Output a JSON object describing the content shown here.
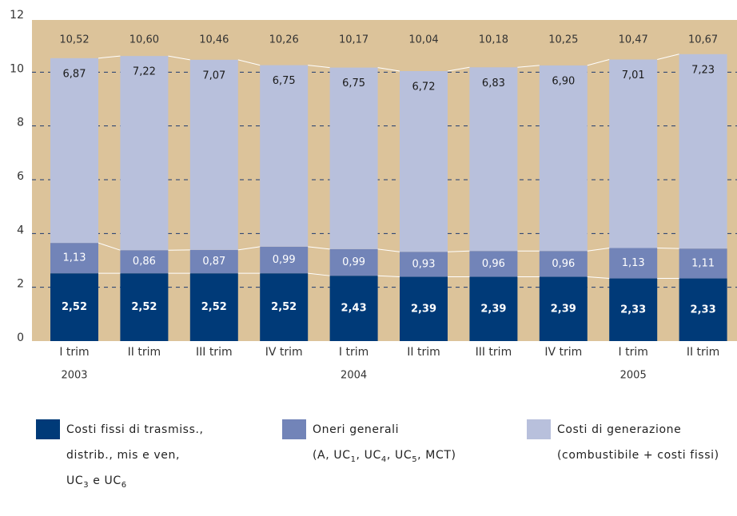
{
  "chart_data": {
    "type": "stacked_bar",
    "categories": [
      "I trim",
      "II trim",
      "III trim",
      "IV trim",
      "I trim",
      "II trim",
      "III trim",
      "IV trim",
      "I trim",
      "II trim"
    ],
    "year_labels": [
      "2003",
      null,
      null,
      null,
      "2004",
      null,
      null,
      null,
      "2005",
      null
    ],
    "ylim": [
      0,
      12
    ],
    "yticks": [
      0,
      2,
      4,
      6,
      8,
      10,
      12
    ],
    "grid": true,
    "series": [
      {
        "name": "Costi fissi di trasmiss.,\ndistrib., mis e ven,\nUC3 e UC6",
        "color": "#003a78",
        "label_color": "#ffffff",
        "values": [
          2.52,
          2.52,
          2.52,
          2.52,
          2.43,
          2.39,
          2.39,
          2.39,
          2.33,
          2.33
        ],
        "value_labels": [
          "2,52",
          "2,52",
          "2,52",
          "2,52",
          "2,43",
          "2,39",
          "2,39",
          "2,39",
          "2,33",
          "2,33"
        ]
      },
      {
        "name": "Oneri generali\n(A, UC1, UC4, UC5, MCT)",
        "color": "#7284b8",
        "label_color": "#ffffff",
        "values": [
          1.13,
          0.86,
          0.87,
          0.99,
          0.99,
          0.93,
          0.96,
          0.96,
          1.13,
          1.11
        ],
        "value_labels": [
          "1,13",
          "0,86",
          "0,87",
          "0,99",
          "0,99",
          "0,93",
          "0,96",
          "0,96",
          "1,13",
          "1,11"
        ]
      },
      {
        "name": "Costi di generazione\n(combustibile + costi fissi)",
        "color": "#b8c0dc",
        "label_color": "#1a1a1a",
        "values": [
          6.87,
          7.22,
          7.07,
          6.75,
          6.75,
          6.72,
          6.83,
          6.9,
          7.01,
          7.23
        ],
        "value_labels": [
          "6,87",
          "7,22",
          "7,07",
          "6,75",
          "6,75",
          "6,72",
          "6,83",
          "6,90",
          "7,01",
          "7,23"
        ]
      }
    ],
    "totals": {
      "values": [
        10.52,
        10.6,
        10.46,
        10.26,
        10.17,
        10.04,
        10.18,
        10.25,
        10.47,
        10.67
      ],
      "value_labels": [
        "10,52",
        "10,60",
        "10,46",
        "10,26",
        "10,17",
        "10,04",
        "10,18",
        "10,25",
        "10,47",
        "10,67"
      ]
    }
  }
}
